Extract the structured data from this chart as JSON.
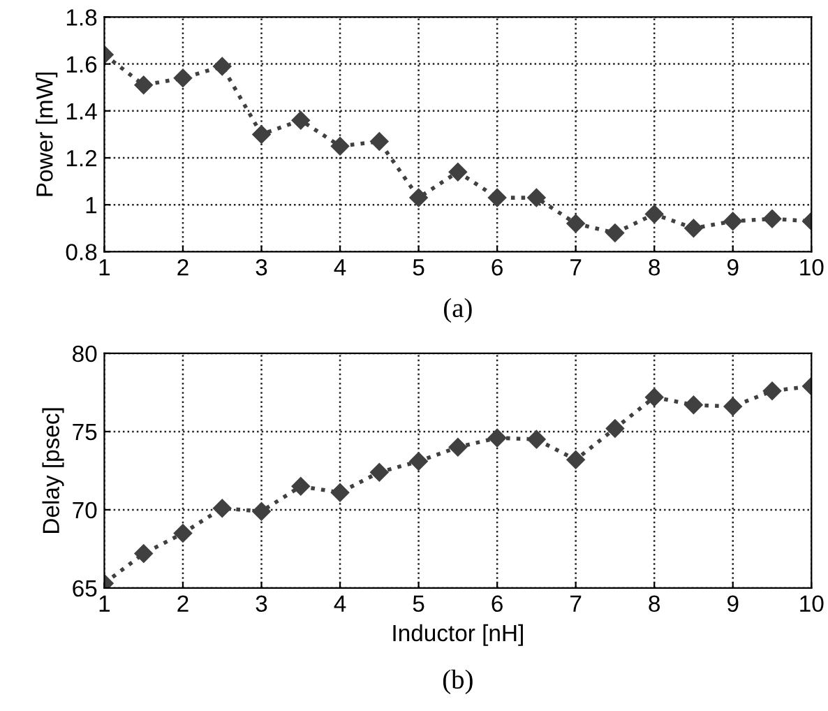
{
  "chart_data": [
    {
      "type": "line",
      "ylabel": "Power [mW]",
      "annotations": [
        "(a)"
      ],
      "x": [
        1,
        1.5,
        2,
        2.5,
        3,
        3.5,
        4,
        4.5,
        5,
        5.5,
        6,
        6.5,
        7,
        7.5,
        8,
        8.5,
        9,
        9.5,
        10
      ],
      "series": [
        {
          "color": "#404040",
          "values": [
            1.64,
            1.51,
            1.54,
            1.59,
            1.3,
            1.36,
            1.25,
            1.27,
            1.03,
            1.14,
            1.03,
            1.03,
            0.92,
            0.88,
            0.96,
            0.9,
            0.93,
            0.94,
            0.93
          ]
        }
      ],
      "xlim": [
        1,
        10
      ],
      "xticks": [
        1,
        2,
        3,
        4,
        5,
        6,
        7,
        8,
        9,
        10
      ],
      "ylim": [
        0.8,
        1.8
      ],
      "yticks": [
        0.8,
        1,
        1.2,
        1.4,
        1.6,
        1.8
      ],
      "grid": true,
      "marker": "diamond",
      "line_style": "dotted"
    },
    {
      "type": "line",
      "xlabel": "Inductor [nH]",
      "ylabel": "Delay [psec]",
      "annotations": [
        "(b)"
      ],
      "x": [
        1,
        1.5,
        2,
        2.5,
        3,
        3.5,
        4,
        4.5,
        5,
        5.5,
        6,
        6.5,
        7,
        7.5,
        8,
        8.5,
        9,
        9.5,
        10
      ],
      "series": [
        {
          "color": "#404040",
          "values": [
            65.3,
            67.2,
            68.5,
            70.1,
            69.9,
            71.5,
            71.1,
            72.4,
            73.1,
            74.0,
            74.6,
            74.5,
            73.2,
            75.2,
            77.2,
            76.7,
            76.6,
            77.6,
            77.9
          ]
        }
      ],
      "xlim": [
        1,
        10
      ],
      "xticks": [
        1,
        2,
        3,
        4,
        5,
        6,
        7,
        8,
        9,
        10
      ],
      "ylim": [
        65,
        80
      ],
      "yticks": [
        65,
        70,
        75,
        80
      ],
      "grid": true,
      "marker": "diamond",
      "line_style": "dotted"
    }
  ]
}
